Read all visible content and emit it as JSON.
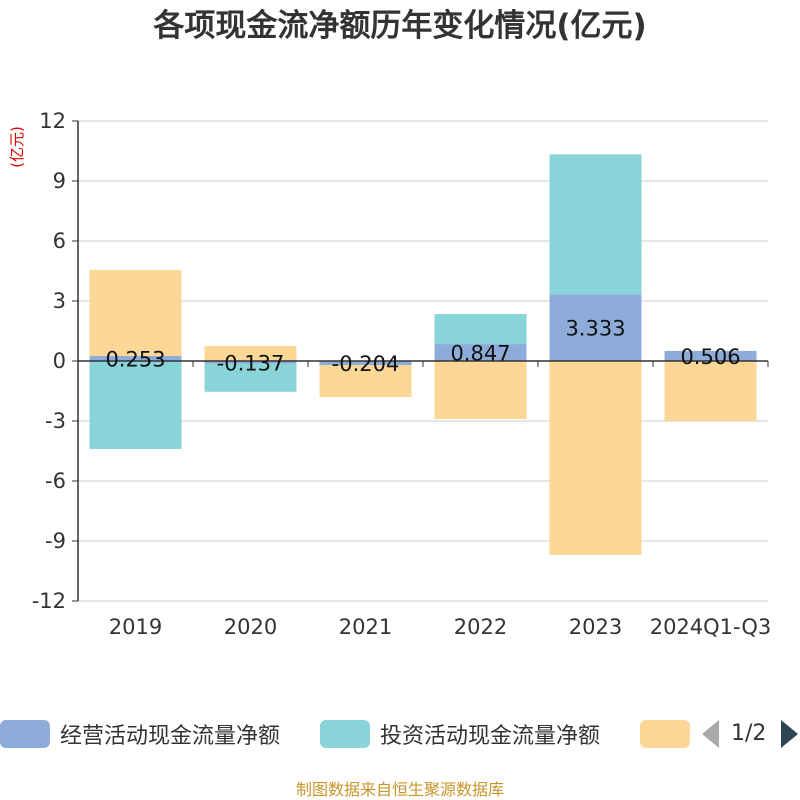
{
  "chart_data": {
    "type": "bar",
    "stacked": true,
    "title": "各项现金流净额历年变化情况(亿元)",
    "ylabel": "(亿元)",
    "categories": [
      "2019",
      "2020",
      "2021",
      "2022",
      "2023",
      "2024Q1-Q3"
    ],
    "ylim": [
      -12,
      12
    ],
    "yticks": [
      12,
      9,
      6,
      3,
      0,
      -3,
      -6,
      -9,
      -12
    ],
    "grid": true,
    "legend_position": "bottom",
    "series": [
      {
        "name": "经营活动现金流量净额",
        "color": "#8eacd9",
        "values": [
          0.253,
          -0.137,
          -0.204,
          0.847,
          3.333,
          0.506
        ],
        "labels": [
          "0.253",
          "-0.137",
          "-0.204",
          "0.847",
          "3.333",
          "0.506"
        ]
      },
      {
        "name": "投资活动现金流量净额",
        "color": "#88d4d8",
        "values": [
          -4.4,
          -1.4,
          0.0,
          1.5,
          7.0,
          0.0
        ]
      },
      {
        "name": "",
        "color": "#fdd796",
        "values": [
          4.3,
          0.75,
          -1.6,
          -2.9,
          -9.7,
          -3.0
        ]
      }
    ]
  },
  "legend": {
    "page_text": "1/2"
  },
  "source": "制图数据来自恒生聚源数据库",
  "colors": {
    "axis": "#333333",
    "grid": "#cccccc",
    "ylabel": "#e00000",
    "source": "#c8952a"
  }
}
